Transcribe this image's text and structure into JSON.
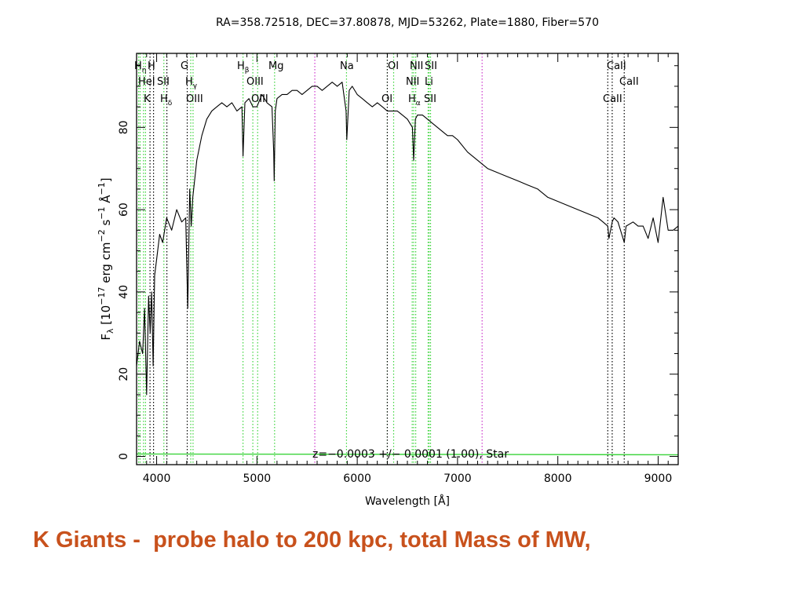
{
  "chart_data": {
    "type": "line",
    "title": "RA=358.72518, DEC=37.80878, MJD=53262, Plate=1880, Fiber=570",
    "xlabel": "Wavelength [Å]",
    "ylabel_parts": {
      "f": "F",
      "lambda": "λ",
      "text": " [10",
      "exp1": "−17",
      "text2": " erg cm",
      "exp2": "−2",
      "text3": " s",
      "exp3": "−1",
      "text4": " Å",
      "exp4": "−1",
      "close": "]"
    },
    "xlim": [
      3800,
      9200
    ],
    "ylim": [
      -2,
      98
    ],
    "x_ticks": [
      4000,
      5000,
      6000,
      7000,
      8000,
      9000
    ],
    "y_ticks": [
      0,
      20,
      40,
      60,
      80
    ],
    "annotation": "z=−0.0003 +/− 0.0001 (1.00), Star",
    "series": [
      {
        "color": "#000000",
        "x": [
          3800,
          3830,
          3860,
          3880,
          3900,
          3920,
          3935,
          3950,
          3965,
          3980,
          4000,
          4030,
          4060,
          4100,
          4150,
          4200,
          4250,
          4290,
          4310,
          4330,
          4345,
          4360,
          4400,
          4450,
          4500,
          4550,
          4600,
          4650,
          4700,
          4750,
          4800,
          4850,
          4861,
          4880,
          4920,
          4960,
          5000,
          5050,
          5100,
          5150,
          5167,
          5172,
          5183,
          5200,
          5250,
          5300,
          5350,
          5400,
          5450,
          5500,
          5550,
          5600,
          5650,
          5700,
          5750,
          5800,
          5850,
          5889,
          5896,
          5920,
          5950,
          6000,
          6050,
          6100,
          6150,
          6200,
          6250,
          6300,
          6350,
          6400,
          6450,
          6500,
          6550,
          6563,
          6580,
          6600,
          6650,
          6700,
          6750,
          6800,
          6850,
          6900,
          6950,
          7000,
          7100,
          7200,
          7300,
          7400,
          7500,
          7600,
          7700,
          7800,
          7900,
          8000,
          8100,
          8200,
          8300,
          8400,
          8450,
          8498,
          8510,
          8542,
          8560,
          8600,
          8662,
          8680,
          8750,
          8800,
          8850,
          8900,
          8950,
          9000,
          9050,
          9100,
          9150,
          9200
        ],
        "y": [
          22,
          28,
          25,
          36,
          15,
          39,
          30,
          40,
          22,
          44,
          48,
          54,
          52,
          58,
          55,
          60,
          57,
          58,
          36,
          65,
          56,
          63,
          72,
          78,
          82,
          84,
          85,
          86,
          85,
          86,
          84,
          85,
          73,
          86,
          87,
          85,
          85,
          88,
          86,
          85,
          74,
          67,
          84,
          87,
          88,
          88,
          89,
          89,
          88,
          89,
          90,
          90,
          89,
          90,
          91,
          90,
          91,
          84,
          77,
          89,
          90,
          88,
          87,
          86,
          85,
          86,
          85,
          84,
          84,
          84,
          83,
          82,
          80,
          72,
          82,
          83,
          83,
          82,
          81,
          80,
          79,
          78,
          78,
          77,
          74,
          72,
          70,
          69,
          68,
          67,
          66,
          65,
          63,
          62,
          61,
          60,
          59,
          58,
          57,
          56,
          53,
          57,
          58,
          57,
          52,
          56,
          57,
          56,
          56,
          53,
          58,
          52,
          63,
          55,
          55,
          56
        ]
      },
      {
        "color": "#3cd43c",
        "x": [
          3800,
          9200
        ],
        "y": [
          0.6,
          0.4
        ]
      }
    ],
    "line_markers": [
      {
        "x": 3820,
        "color": "#3cd43c"
      },
      {
        "x": 3835,
        "color": "#3cd43c"
      },
      {
        "x": 3869,
        "color": "#3cd43c"
      },
      {
        "x": 3889,
        "color": "#3cd43c"
      },
      {
        "x": 3934,
        "color": "#000000"
      },
      {
        "x": 3969,
        "color": "#000000"
      },
      {
        "x": 4072,
        "color": "#3cd43c"
      },
      {
        "x": 4102,
        "color": "#000000"
      },
      {
        "x": 4305,
        "color": "#000000"
      },
      {
        "x": 4340,
        "color": "#3cd43c"
      },
      {
        "x": 4363,
        "color": "#3cd43c"
      },
      {
        "x": 4861,
        "color": "#3cd43c"
      },
      {
        "x": 4959,
        "color": "#3cd43c"
      },
      {
        "x": 5007,
        "color": "#3cd43c"
      },
      {
        "x": 5176,
        "color": "#3cd43c"
      },
      {
        "x": 5577,
        "color": "#cc33cc"
      },
      {
        "x": 5893,
        "color": "#3cd43c"
      },
      {
        "x": 6300,
        "color": "#3cd43c"
      },
      {
        "x": 6300,
        "color": "#000000"
      },
      {
        "x": 6363,
        "color": "#3cd43c"
      },
      {
        "x": 6548,
        "color": "#3cd43c"
      },
      {
        "x": 6563,
        "color": "#3cd43c"
      },
      {
        "x": 6583,
        "color": "#3cd43c"
      },
      {
        "x": 6707,
        "color": "#3cd43c"
      },
      {
        "x": 6717,
        "color": "#3cd43c"
      },
      {
        "x": 6731,
        "color": "#3cd43c"
      },
      {
        "x": 7245,
        "color": "#cc33cc"
      },
      {
        "x": 8498,
        "color": "#000000"
      },
      {
        "x": 8542,
        "color": "#000000"
      },
      {
        "x": 8662,
        "color": "#000000"
      }
    ],
    "line_labels": {
      "h_eta": "H",
      "h_eta_sub": "η",
      "h_eps": "H",
      "he1": "HeI",
      "s2_blue": "SII",
      "k": "K",
      "h_delta": "H",
      "h_delta_sub": "δ",
      "g": "G",
      "h_gamma": "H",
      "h_gamma_sub": "γ",
      "o3_blue": "OIII",
      "h_beta": "H",
      "h_beta_sub": "β",
      "o3_a": "OIII",
      "o3_b": "OIII",
      "mg": "Mg",
      "na": "Na",
      "o1_top": "OI",
      "o1_mid": "OI",
      "n2_top": "NII",
      "s2_top": "SII",
      "n2_mid": "NII",
      "li": "Li",
      "h_alpha": "H",
      "h_alpha_sub": "α",
      "s2_bottom": "SII",
      "ca2_top": "CaII",
      "ca2_mid": "CaII",
      "ca2_bottom": "CaII"
    }
  },
  "caption": "K Giants -  probe halo to 200 kpc, total Mass of MW,"
}
